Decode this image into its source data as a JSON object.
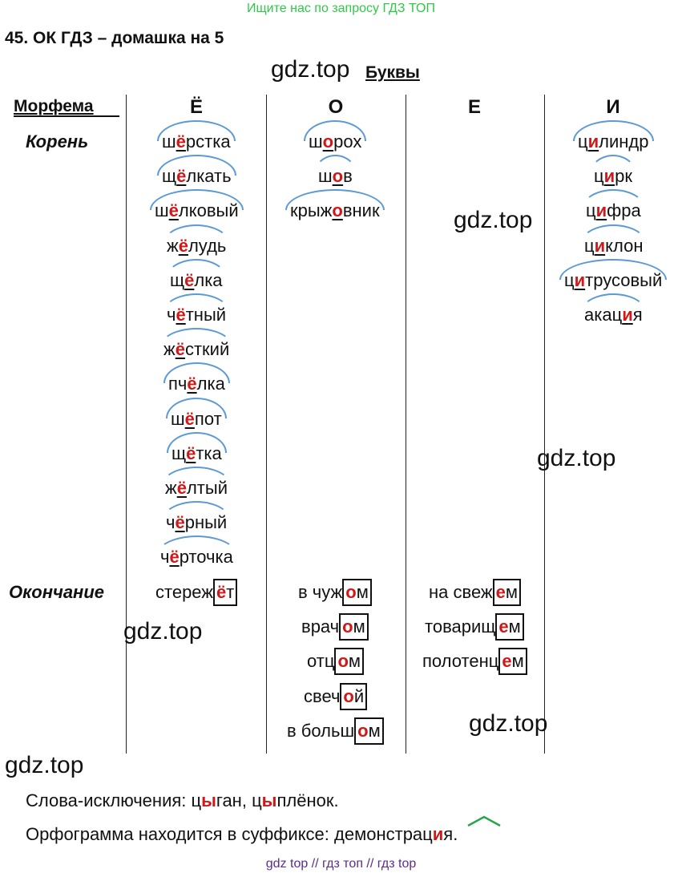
{
  "top_hint": "Ищите нас по запросу ГДЗ ТОП",
  "title": "45. ОК ГДЗ – домашка на 5",
  "watermark": "gdz.top",
  "section_title": "Буквы",
  "morpheme_header": "Морфема",
  "columns": [
    "Ё",
    "О",
    "Е",
    "И"
  ],
  "rows": {
    "root": "Корень",
    "ending": "Окончание"
  },
  "root_words": {
    "yo": [
      {
        "pre": "ш",
        "hl": "ё",
        "post": "рстка"
      },
      {
        "pre": "щ",
        "hl": "ё",
        "post": "лкать"
      },
      {
        "pre": "ш",
        "hl": "ё",
        "post": "лковый"
      },
      {
        "pre": "ж",
        "hl": "ё",
        "post": "лудь"
      },
      {
        "pre": "щ",
        "hl": "ё",
        "post": "лка"
      },
      {
        "pre": "ч",
        "hl": "ё",
        "post": "тный"
      },
      {
        "pre": "ж",
        "hl": "ё",
        "post": "сткий"
      },
      {
        "pre": "пч",
        "hl": "ё",
        "post": "лка"
      },
      {
        "pre": "ш",
        "hl": "ё",
        "post": "пот"
      },
      {
        "pre": "щ",
        "hl": "ё",
        "post": "тка"
      },
      {
        "pre": "ж",
        "hl": "ё",
        "post": "лтый"
      },
      {
        "pre": "ч",
        "hl": "ё",
        "post": "рный"
      },
      {
        "pre": "ч",
        "hl": "ё",
        "post": "рточка"
      }
    ],
    "o": [
      {
        "pre": "ш",
        "hl": "о",
        "post": "рох"
      },
      {
        "pre": "ш",
        "hl": "о",
        "post": "в"
      },
      {
        "pre": "крыж",
        "hl": "о",
        "post": "вник"
      }
    ],
    "i": [
      {
        "pre": "ц",
        "hl": "и",
        "post": "линдр"
      },
      {
        "pre": "ц",
        "hl": "и",
        "post": "рк"
      },
      {
        "pre": "ц",
        "hl": "и",
        "post": "фра"
      },
      {
        "pre": "ц",
        "hl": "и",
        "post": "клон"
      },
      {
        "pre": "ц",
        "hl": "и",
        "post": "трусовый"
      },
      {
        "pre": "акац",
        "hl": "и",
        "post": "я"
      }
    ]
  },
  "ending_words": {
    "yo": [
      {
        "pre": "стереж",
        "red": "ё",
        "box_post": "т"
      }
    ],
    "o": [
      {
        "pre": "в чуж",
        "red": "о",
        "box_post": "м"
      },
      {
        "pre": "врач",
        "red": "о",
        "box_post": "м"
      },
      {
        "pre": "отц",
        "red": "о",
        "box_post": "м"
      },
      {
        "pre": "свеч",
        "red": "о",
        "box_post": "й"
      },
      {
        "pre": "в больш",
        "red": "о",
        "box_post": "м"
      }
    ],
    "e": [
      {
        "pre": "на свеж",
        "red": "е",
        "box_post": "м"
      },
      {
        "pre": "товарищ",
        "red": "е",
        "box_post": "м"
      },
      {
        "pre": "полотенц",
        "red": "е",
        "box_post": "м"
      }
    ]
  },
  "exceptions": {
    "label": "Слова-исключения: ",
    "w1_pre": "ц",
    "w1_red": "ы",
    "w1_post": "ган, ",
    "w2_pre": "ц",
    "w2_red": "ы",
    "w2_post": "плёнок."
  },
  "suffix_note": {
    "label": "Орфограмма находится в суффиксе: ",
    "pre": "демонстрац",
    "red": "и",
    "post": "я."
  },
  "footer": "gdz top  //  гдз топ  //  гдз top",
  "colors": {
    "accent_red": "#d01818",
    "arc_blue": "#5b9ad5",
    "suffix_green": "#2aa44a",
    "top_green": "#2fc84a",
    "footer_purple": "#5b2d8e"
  }
}
